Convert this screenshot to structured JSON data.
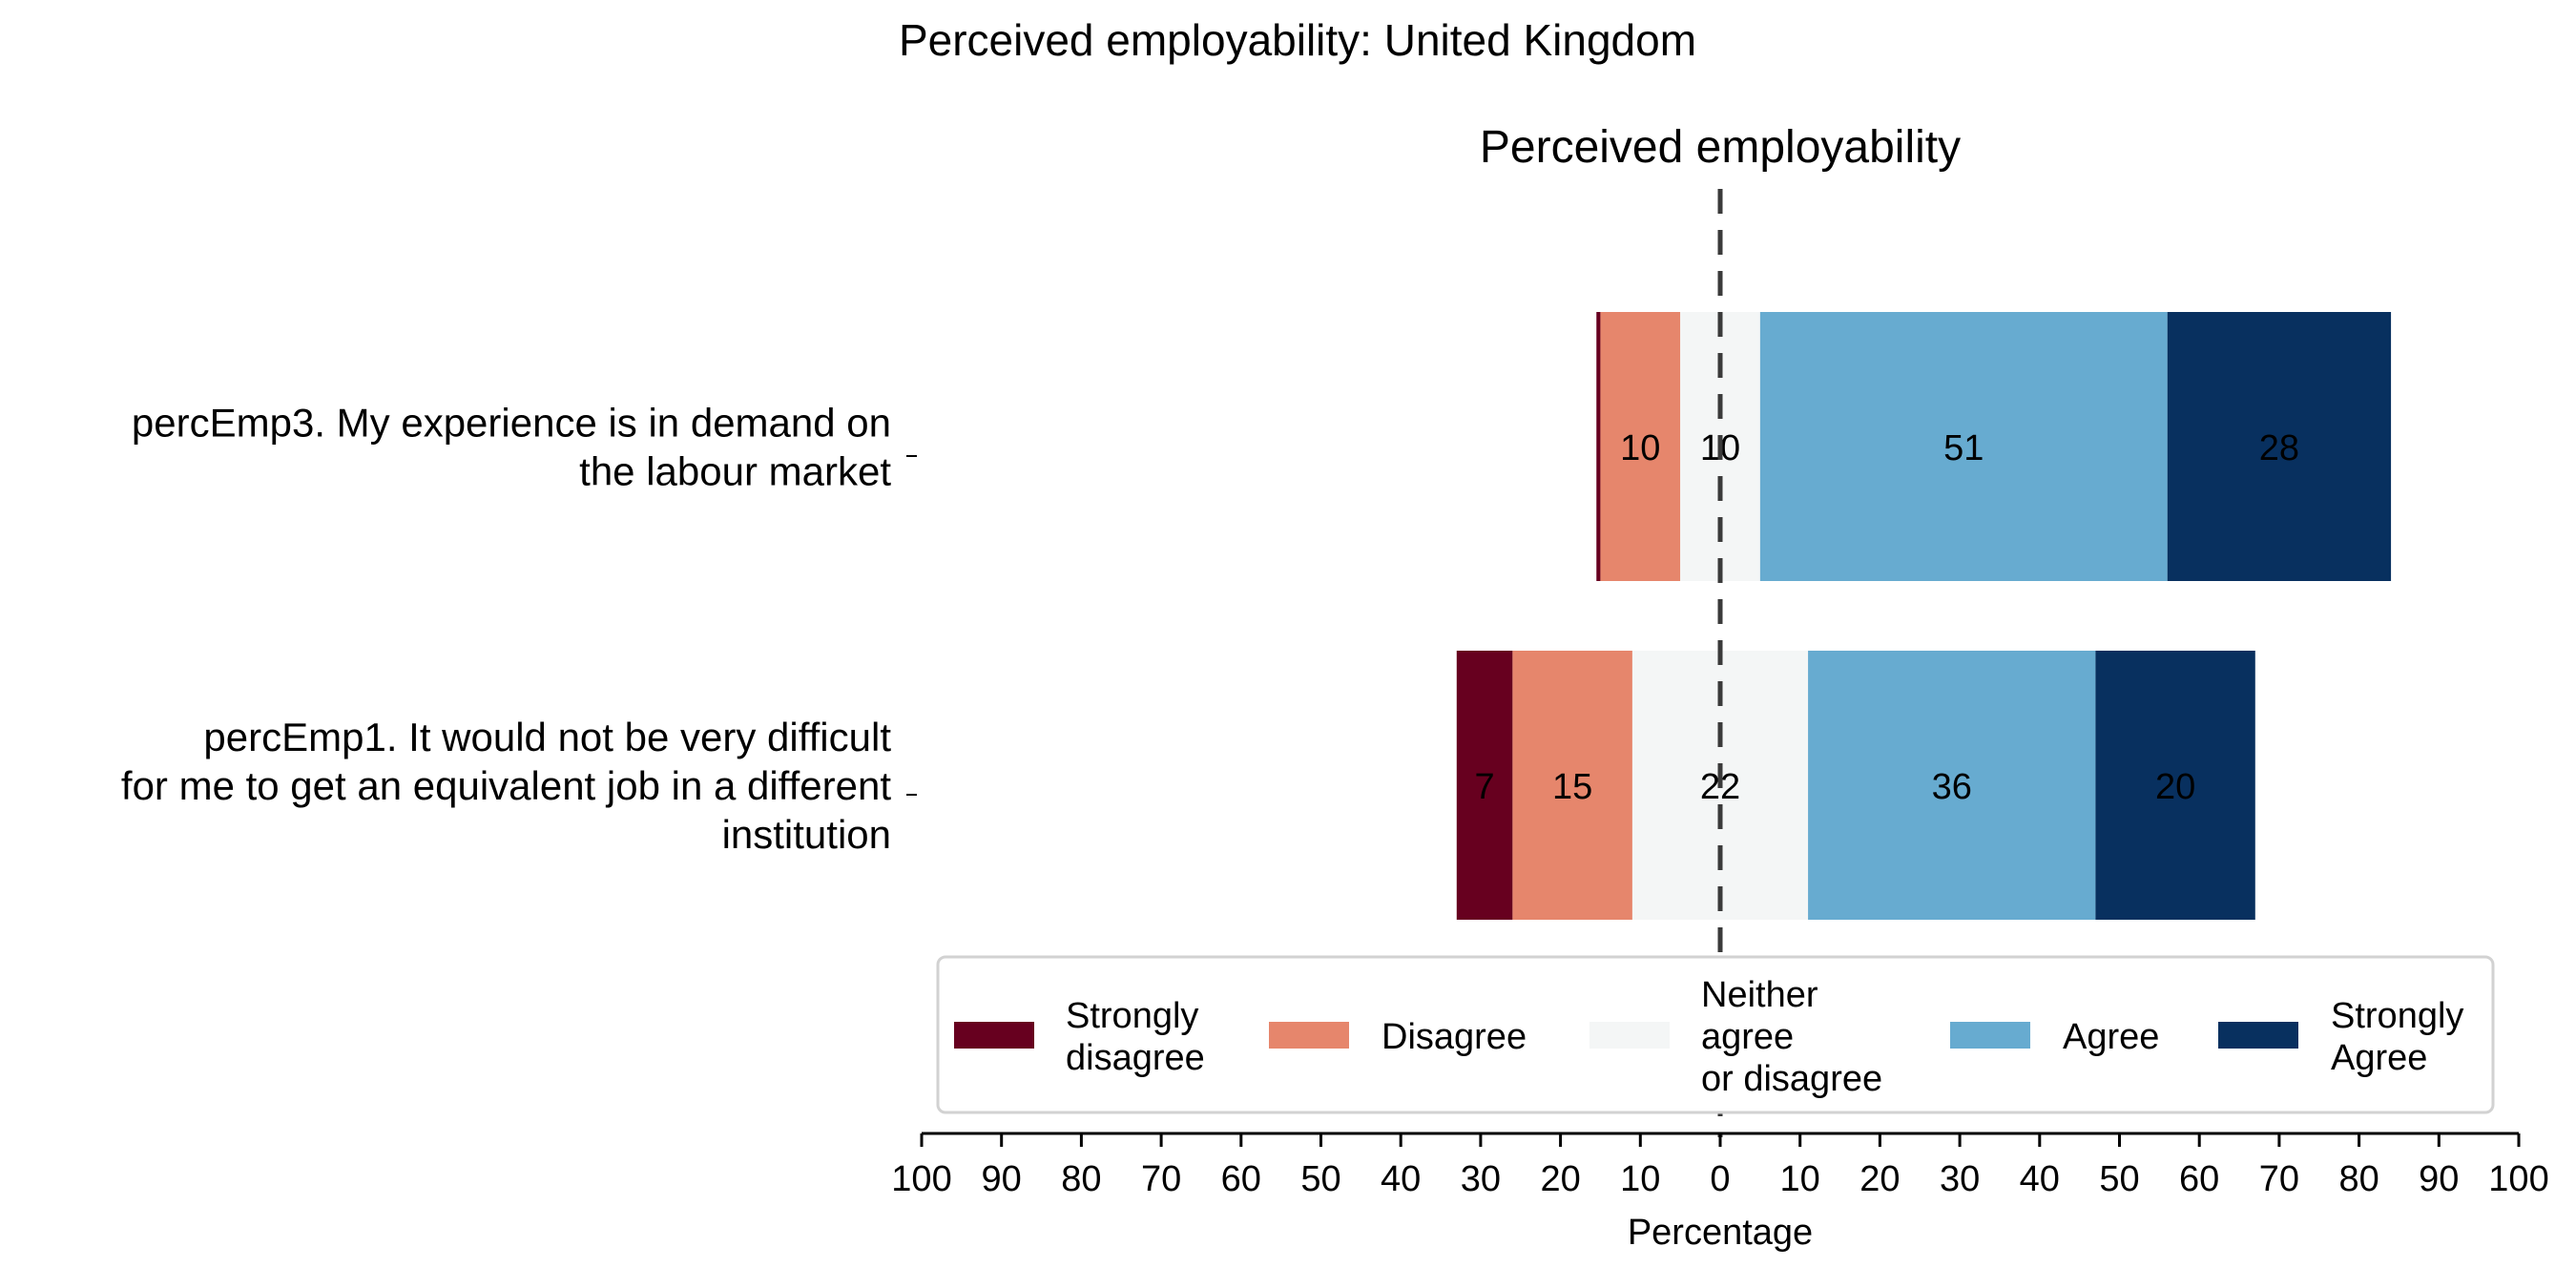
{
  "chart_data": {
    "type": "bar",
    "orientation": "horizontal-diverging",
    "title": "Perceived employability: United Kingdom",
    "subtitle": "Perceived employability",
    "xlabel": "Percentage",
    "xlim": [
      -100,
      100
    ],
    "x_ticks": [
      "100",
      "90",
      "80",
      "70",
      "60",
      "50",
      "40",
      "30",
      "20",
      "10",
      "0",
      "10",
      "20",
      "30",
      "40",
      "50",
      "60",
      "70",
      "80",
      "90",
      "100"
    ],
    "categories": [
      [
        "percEmp3. My experience is in demand on",
        "the labour market"
      ],
      [
        "percEmp1. It would not be very difficult",
        "for me to get an equivalent job in a different",
        "institution"
      ]
    ],
    "series": [
      {
        "name": "Strongly disagree",
        "legend_lines": [
          "Strongly",
          "disagree"
        ],
        "color": "#67001f",
        "values": [
          0.5,
          7
        ],
        "labels": [
          "",
          "7"
        ]
      },
      {
        "name": "Disagree",
        "legend_lines": [
          "Disagree"
        ],
        "color": "#e6866c",
        "values": [
          10,
          15
        ],
        "labels": [
          "10",
          "15"
        ]
      },
      {
        "name": "Neither agree or disagree",
        "legend_lines": [
          "Neither",
          "agree",
          "or disagree"
        ],
        "color": "#f4f6f6",
        "values": [
          10,
          22
        ],
        "labels": [
          "10",
          "22"
        ]
      },
      {
        "name": "Agree",
        "legend_lines": [
          "Agree"
        ],
        "color": "#67abd0",
        "values": [
          51,
          36
        ],
        "labels": [
          "51",
          "36"
        ]
      },
      {
        "name": "Strongly Agree",
        "legend_lines": [
          "Strongly",
          "Agree"
        ],
        "color": "#08305f",
        "values": [
          28,
          20
        ],
        "labels": [
          "28",
          "20"
        ]
      }
    ],
    "neutral_split": "centered on 0",
    "grid": false,
    "legend_position": "bottom-center"
  }
}
